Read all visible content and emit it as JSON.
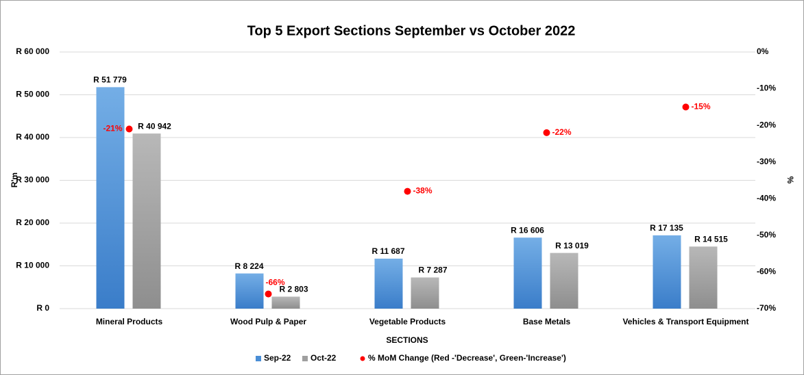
{
  "chart_data": {
    "type": "bar",
    "title": "Top 5 Export Sections  September vs October 2022",
    "x_label": "SECTIONS",
    "y_label": "R'm",
    "y2_label": "%",
    "categories": [
      "Mineral Products",
      "Wood Pulp & Paper",
      "Vegetable Products",
      "Base Metals",
      "Vehicles & Transport Equipment"
    ],
    "series": [
      {
        "name": "Sep-22",
        "color": "#4a8ed6",
        "values": [
          51779,
          8224,
          11687,
          16606,
          17135
        ],
        "value_labels": [
          "R 51 779",
          "R 8 224",
          "R 11 687",
          "R 16 606",
          "R 17 135"
        ]
      },
      {
        "name": "Oct-22",
        "color": "#9f9f9f",
        "values": [
          40942,
          2803,
          7287,
          13019,
          14515
        ],
        "value_labels": [
          "R 40 942",
          "R 2 803",
          "R 7 287",
          "R 13 019",
          "R 14 515"
        ]
      },
      {
        "name": "% MoM Change (Red -'Decrease', Green-'Increase')",
        "color": "#ff0000",
        "type": "scatter",
        "axis": "y2",
        "values": [
          -21,
          -66,
          -38,
          -22,
          -15
        ],
        "value_labels": [
          "-21%",
          "-66%",
          "-38%",
          "-22%",
          "-15%"
        ]
      }
    ],
    "ylim": [
      0,
      60000
    ],
    "yticks": [
      {
        "value": 0,
        "label": "R 0"
      },
      {
        "value": 10000,
        "label": "R 10 000"
      },
      {
        "value": 20000,
        "label": "R 20 000"
      },
      {
        "value": 30000,
        "label": "R 30 000"
      },
      {
        "value": 40000,
        "label": "R 40 000"
      },
      {
        "value": 50000,
        "label": "R 50 000"
      },
      {
        "value": 60000,
        "label": "R 60 000"
      }
    ],
    "y2lim": [
      -70,
      0
    ],
    "y2ticks": [
      {
        "value": 0,
        "label": "0%"
      },
      {
        "value": -10,
        "label": "-10%"
      },
      {
        "value": -20,
        "label": "-20%"
      },
      {
        "value": -30,
        "label": "-30%"
      },
      {
        "value": -40,
        "label": "-40%"
      },
      {
        "value": -50,
        "label": "-50%"
      },
      {
        "value": -60,
        "label": "-60%"
      },
      {
        "value": -70,
        "label": "-70%"
      }
    ],
    "grid": true,
    "legend": "bottom"
  }
}
